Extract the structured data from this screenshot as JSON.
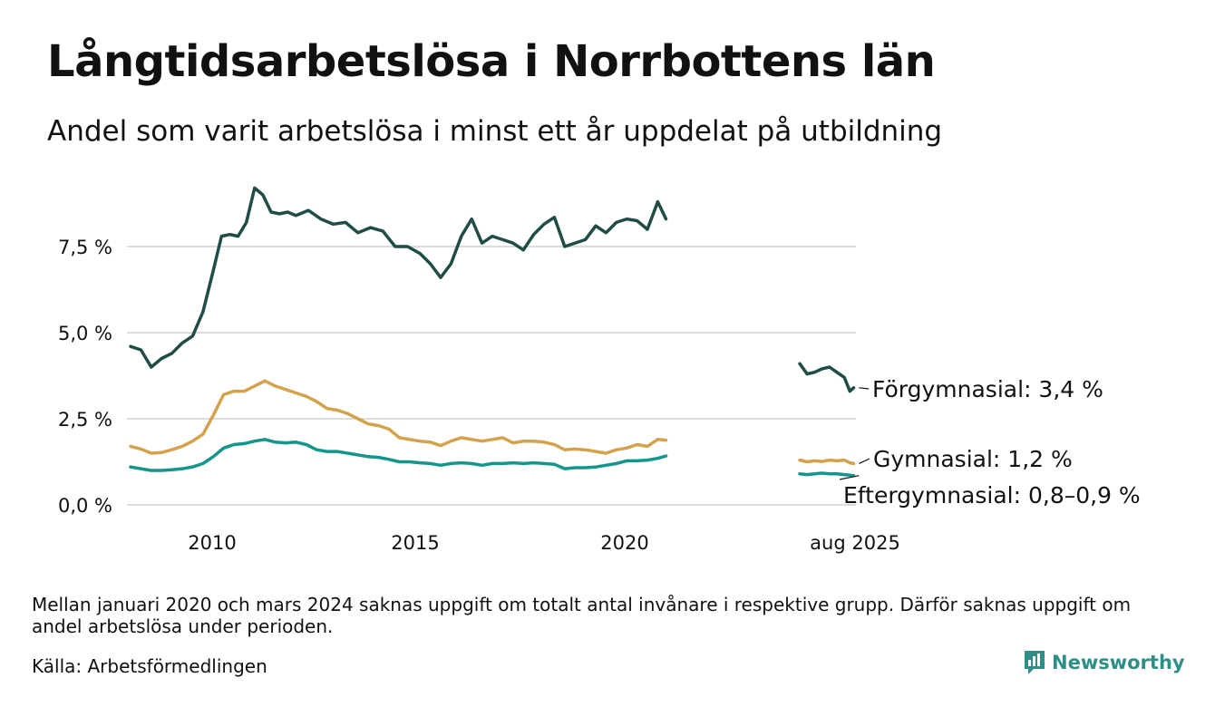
{
  "title": "Långtidsarbetslösa i Norrbottens län",
  "subtitle": "Andel som varit arbetslösa i minst ett år uppdelat på utbildning",
  "footnote": "Mellan januari 2020 och mars 2024 saknas uppgift om totalt antal invånare i respektive grupp. Därför saknas uppgift om andel arbetslösa under perioden.",
  "source": "Källa: Arbetsförmedlingen",
  "brand": "Newsworthy",
  "colors": {
    "forgymnasial": "#1f4d45",
    "gymnasial": "#d4a24c",
    "eftergymnasial": "#13968c",
    "grid": "#dcdcdc",
    "brand": "#2f8f86"
  },
  "chart_data": {
    "type": "line",
    "y_axis": {
      "min": 0,
      "max": 10,
      "ticks": [
        0,
        2.5,
        5,
        7.5
      ],
      "tick_labels": [
        "0,0 %",
        "2,5 %",
        "5,0 %",
        "7,5 %"
      ]
    },
    "x_axis": {
      "tick_labels": [
        "2010",
        "2015",
        "2020",
        "aug 2025"
      ]
    },
    "grid": true,
    "annotations": {
      "forgymnasial": "Förgymnasial: 3,4 %",
      "gymnasial": "Gymnasial: 1,2 %",
      "eftergymnasial": "Eftergymnasial: 0,8–0,9 %"
    },
    "series": [
      {
        "key": "forgymnasial",
        "color": "#1f4d45",
        "segments": [
          {
            "x": [
              2008.0,
              2008.25,
              2008.5,
              2008.75,
              2009.0,
              2009.25,
              2009.5,
              2009.75,
              2010.0,
              2010.2,
              2010.4,
              2010.6,
              2010.8,
              2011.0,
              2011.2,
              2011.4,
              2011.6,
              2011.8,
              2012.0,
              2012.3,
              2012.6,
              2012.9,
              2013.2,
              2013.5,
              2013.8,
              2014.1,
              2014.4,
              2014.7,
              2015.0,
              2015.25,
              2015.5,
              2015.75,
              2016.0,
              2016.25,
              2016.5,
              2016.75,
              2017.0,
              2017.25,
              2017.5,
              2017.75,
              2018.0,
              2018.25,
              2018.5,
              2018.75,
              2019.0,
              2019.25,
              2019.5,
              2019.75,
              2020.0,
              2020.25,
              2020.5,
              2020.75,
              2020.95
            ],
            "y": [
              4.6,
              4.5,
              4.0,
              4.25,
              4.4,
              4.7,
              4.9,
              5.6,
              6.8,
              7.8,
              7.85,
              7.8,
              8.2,
              9.2,
              9.0,
              8.5,
              8.45,
              8.5,
              8.4,
              8.55,
              8.3,
              8.15,
              8.2,
              7.9,
              8.05,
              7.95,
              7.5,
              7.5,
              7.3,
              7.0,
              6.6,
              7.0,
              7.8,
              8.3,
              7.6,
              7.8,
              7.7,
              7.6,
              7.4,
              7.85,
              8.15,
              8.35,
              7.5,
              7.6,
              7.7,
              8.1,
              7.9,
              8.2,
              8.3,
              8.25,
              8.0,
              8.8,
              8.3
            ]
          },
          {
            "x": [
              2024.2,
              2024.4,
              2024.6,
              2024.8,
              2025.0,
              2025.2,
              2025.4,
              2025.55,
              2025.65
            ],
            "y": [
              4.1,
              3.8,
              3.85,
              3.95,
              4.0,
              3.85,
              3.7,
              3.3,
              3.4
            ]
          }
        ]
      },
      {
        "key": "gymnasial",
        "color": "#d4a24c",
        "segments": [
          {
            "x": [
              2008.0,
              2008.25,
              2008.5,
              2008.75,
              2009.0,
              2009.25,
              2009.5,
              2009.75,
              2010.0,
              2010.25,
              2010.5,
              2010.75,
              2011.0,
              2011.25,
              2011.5,
              2011.75,
              2012.0,
              2012.25,
              2012.5,
              2012.75,
              2013.0,
              2013.25,
              2013.5,
              2013.75,
              2014.0,
              2014.25,
              2014.5,
              2014.75,
              2015.0,
              2015.25,
              2015.5,
              2015.75,
              2016.0,
              2016.25,
              2016.5,
              2016.75,
              2017.0,
              2017.25,
              2017.5,
              2017.75,
              2018.0,
              2018.25,
              2018.5,
              2018.75,
              2019.0,
              2019.25,
              2019.5,
              2019.75,
              2020.0,
              2020.25,
              2020.5,
              2020.75,
              2020.95
            ],
            "y": [
              1.7,
              1.62,
              1.5,
              1.52,
              1.6,
              1.7,
              1.85,
              2.05,
              2.6,
              3.2,
              3.3,
              3.3,
              3.45,
              3.6,
              3.45,
              3.35,
              3.25,
              3.15,
              3.0,
              2.8,
              2.75,
              2.65,
              2.5,
              2.35,
              2.3,
              2.2,
              1.95,
              1.9,
              1.85,
              1.82,
              1.72,
              1.85,
              1.95,
              1.9,
              1.85,
              1.9,
              1.95,
              1.8,
              1.85,
              1.85,
              1.82,
              1.75,
              1.6,
              1.62,
              1.6,
              1.55,
              1.5,
              1.6,
              1.65,
              1.75,
              1.7,
              1.9,
              1.88
            ]
          },
          {
            "x": [
              2024.2,
              2024.4,
              2024.6,
              2024.8,
              2025.0,
              2025.2,
              2025.4,
              2025.55,
              2025.65
            ],
            "y": [
              1.3,
              1.25,
              1.28,
              1.26,
              1.3,
              1.28,
              1.3,
              1.22,
              1.2
            ]
          }
        ]
      },
      {
        "key": "eftergymnasial",
        "color": "#13968c",
        "segments": [
          {
            "x": [
              2008.0,
              2008.25,
              2008.5,
              2008.75,
              2009.0,
              2009.25,
              2009.5,
              2009.75,
              2010.0,
              2010.25,
              2010.5,
              2010.75,
              2011.0,
              2011.25,
              2011.5,
              2011.75,
              2012.0,
              2012.25,
              2012.5,
              2012.75,
              2013.0,
              2013.25,
              2013.5,
              2013.75,
              2014.0,
              2014.25,
              2014.5,
              2014.75,
              2015.0,
              2015.25,
              2015.5,
              2015.75,
              2016.0,
              2016.25,
              2016.5,
              2016.75,
              2017.0,
              2017.25,
              2017.5,
              2017.75,
              2018.0,
              2018.25,
              2018.5,
              2018.75,
              2019.0,
              2019.25,
              2019.5,
              2019.75,
              2020.0,
              2020.25,
              2020.5,
              2020.75,
              2020.95
            ],
            "y": [
              1.1,
              1.05,
              1.0,
              1.0,
              1.02,
              1.05,
              1.1,
              1.2,
              1.4,
              1.65,
              1.75,
              1.78,
              1.85,
              1.9,
              1.82,
              1.8,
              1.82,
              1.75,
              1.6,
              1.55,
              1.55,
              1.5,
              1.45,
              1.4,
              1.38,
              1.32,
              1.25,
              1.25,
              1.22,
              1.2,
              1.15,
              1.2,
              1.22,
              1.2,
              1.15,
              1.2,
              1.2,
              1.22,
              1.2,
              1.22,
              1.2,
              1.18,
              1.05,
              1.08,
              1.08,
              1.1,
              1.15,
              1.2,
              1.28,
              1.28,
              1.3,
              1.35,
              1.42
            ]
          },
          {
            "x": [
              2024.2,
              2024.4,
              2024.6,
              2024.8,
              2025.0,
              2025.2,
              2025.4,
              2025.55,
              2025.65
            ],
            "y": [
              0.9,
              0.88,
              0.9,
              0.92,
              0.9,
              0.9,
              0.88,
              0.86,
              0.85
            ]
          }
        ]
      }
    ]
  }
}
